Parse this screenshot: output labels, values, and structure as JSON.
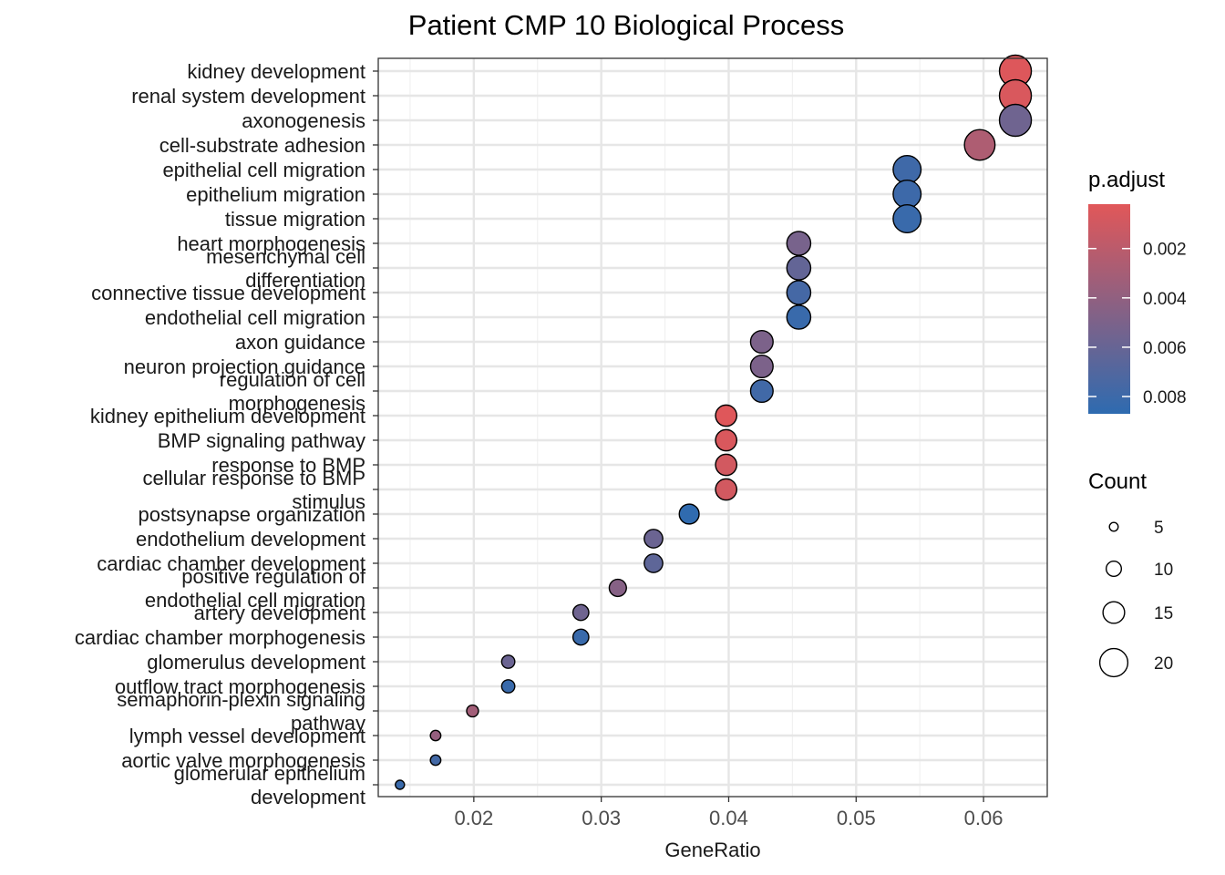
{
  "chart_data": {
    "type": "scatter",
    "title": "Patient CMP 10 Biological Process",
    "xlabel": "GeneRatio",
    "ylabel": "",
    "xlim": [
      0.0125,
      0.065
    ],
    "xticks": [
      0.02,
      0.03,
      0.04,
      0.05,
      0.06
    ],
    "xtick_labels": [
      "0.02",
      "0.03",
      "0.04",
      "0.05",
      "0.06"
    ],
    "grid": true,
    "legend_position": "right",
    "color_legend": {
      "title": "p.adjust",
      "ticks": [
        0.002,
        0.004,
        0.006,
        0.008
      ],
      "tick_labels": [
        "0.002",
        "0.004",
        "0.006",
        "0.008"
      ],
      "range": [
        0.0002,
        0.0087
      ],
      "low_color": "#E15759",
      "high_color": "#2E6BB0"
    },
    "size_legend": {
      "title": "Count",
      "values": [
        5,
        10,
        15,
        20
      ],
      "labels": [
        "5",
        "10",
        "15",
        "20"
      ]
    },
    "points": [
      {
        "term": "kidney development",
        "gene_ratio": 0.0625,
        "count": 22,
        "p_adjust": 0.0004
      },
      {
        "term": "renal system development",
        "gene_ratio": 0.0625,
        "count": 22,
        "p_adjust": 0.0006
      },
      {
        "term": "axonogenesis",
        "gene_ratio": 0.0625,
        "count": 22,
        "p_adjust": 0.0056
      },
      {
        "term": "cell-substrate adhesion",
        "gene_ratio": 0.0597,
        "count": 21,
        "p_adjust": 0.0026
      },
      {
        "term": "epithelial cell migration",
        "gene_ratio": 0.054,
        "count": 19,
        "p_adjust": 0.0079
      },
      {
        "term": "epithelium migration",
        "gene_ratio": 0.054,
        "count": 19,
        "p_adjust": 0.008
      },
      {
        "term": "tissue migration",
        "gene_ratio": 0.054,
        "count": 19,
        "p_adjust": 0.0082
      },
      {
        "term": "heart morphogenesis",
        "gene_ratio": 0.0455,
        "count": 16,
        "p_adjust": 0.0052
      },
      {
        "term": "mesenchymal cell differentiation",
        "gene_ratio": 0.0455,
        "count": 16,
        "p_adjust": 0.0062
      },
      {
        "term": "connective tissue development",
        "gene_ratio": 0.0455,
        "count": 16,
        "p_adjust": 0.0076
      },
      {
        "term": "endothelial cell migration",
        "gene_ratio": 0.0455,
        "count": 16,
        "p_adjust": 0.0082
      },
      {
        "term": "axon guidance",
        "gene_ratio": 0.0426,
        "count": 15,
        "p_adjust": 0.005
      },
      {
        "term": "neuron projection guidance",
        "gene_ratio": 0.0426,
        "count": 15,
        "p_adjust": 0.005
      },
      {
        "term": "regulation of cell morphogenesis",
        "gene_ratio": 0.0426,
        "count": 15,
        "p_adjust": 0.0078
      },
      {
        "term": "kidney epithelium development",
        "gene_ratio": 0.0398,
        "count": 14,
        "p_adjust": 0.0003
      },
      {
        "term": "BMP signaling pathway",
        "gene_ratio": 0.0398,
        "count": 14,
        "p_adjust": 0.0006
      },
      {
        "term": "response to BMP",
        "gene_ratio": 0.0398,
        "count": 14,
        "p_adjust": 0.0009
      },
      {
        "term": "cellular response to BMP stimulus",
        "gene_ratio": 0.0398,
        "count": 14,
        "p_adjust": 0.0009
      },
      {
        "term": "postsynapse organization",
        "gene_ratio": 0.0369,
        "count": 13,
        "p_adjust": 0.0086
      },
      {
        "term": "endothelium development",
        "gene_ratio": 0.0341,
        "count": 12,
        "p_adjust": 0.0058
      },
      {
        "term": "cardiac chamber development",
        "gene_ratio": 0.0341,
        "count": 12,
        "p_adjust": 0.0064
      },
      {
        "term": "positive regulation of endothelial cell migration",
        "gene_ratio": 0.0313,
        "count": 11,
        "p_adjust": 0.0045
      },
      {
        "term": "artery development",
        "gene_ratio": 0.0284,
        "count": 10,
        "p_adjust": 0.0056
      },
      {
        "term": "cardiac chamber morphogenesis",
        "gene_ratio": 0.0284,
        "count": 10,
        "p_adjust": 0.0082
      },
      {
        "term": "glomerulus development",
        "gene_ratio": 0.0227,
        "count": 8,
        "p_adjust": 0.0058
      },
      {
        "term": "outflow tract morphogenesis",
        "gene_ratio": 0.0227,
        "count": 8,
        "p_adjust": 0.0082
      },
      {
        "term": "semaphorin-plexin signaling pathway",
        "gene_ratio": 0.0199,
        "count": 7,
        "p_adjust": 0.0032
      },
      {
        "term": "lymph vessel development",
        "gene_ratio": 0.017,
        "count": 6,
        "p_adjust": 0.0038
      },
      {
        "term": "aortic valve morphogenesis",
        "gene_ratio": 0.017,
        "count": 6,
        "p_adjust": 0.0077
      },
      {
        "term": "glomerular epithelium development",
        "gene_ratio": 0.0142,
        "count": 5,
        "p_adjust": 0.0082
      }
    ]
  }
}
